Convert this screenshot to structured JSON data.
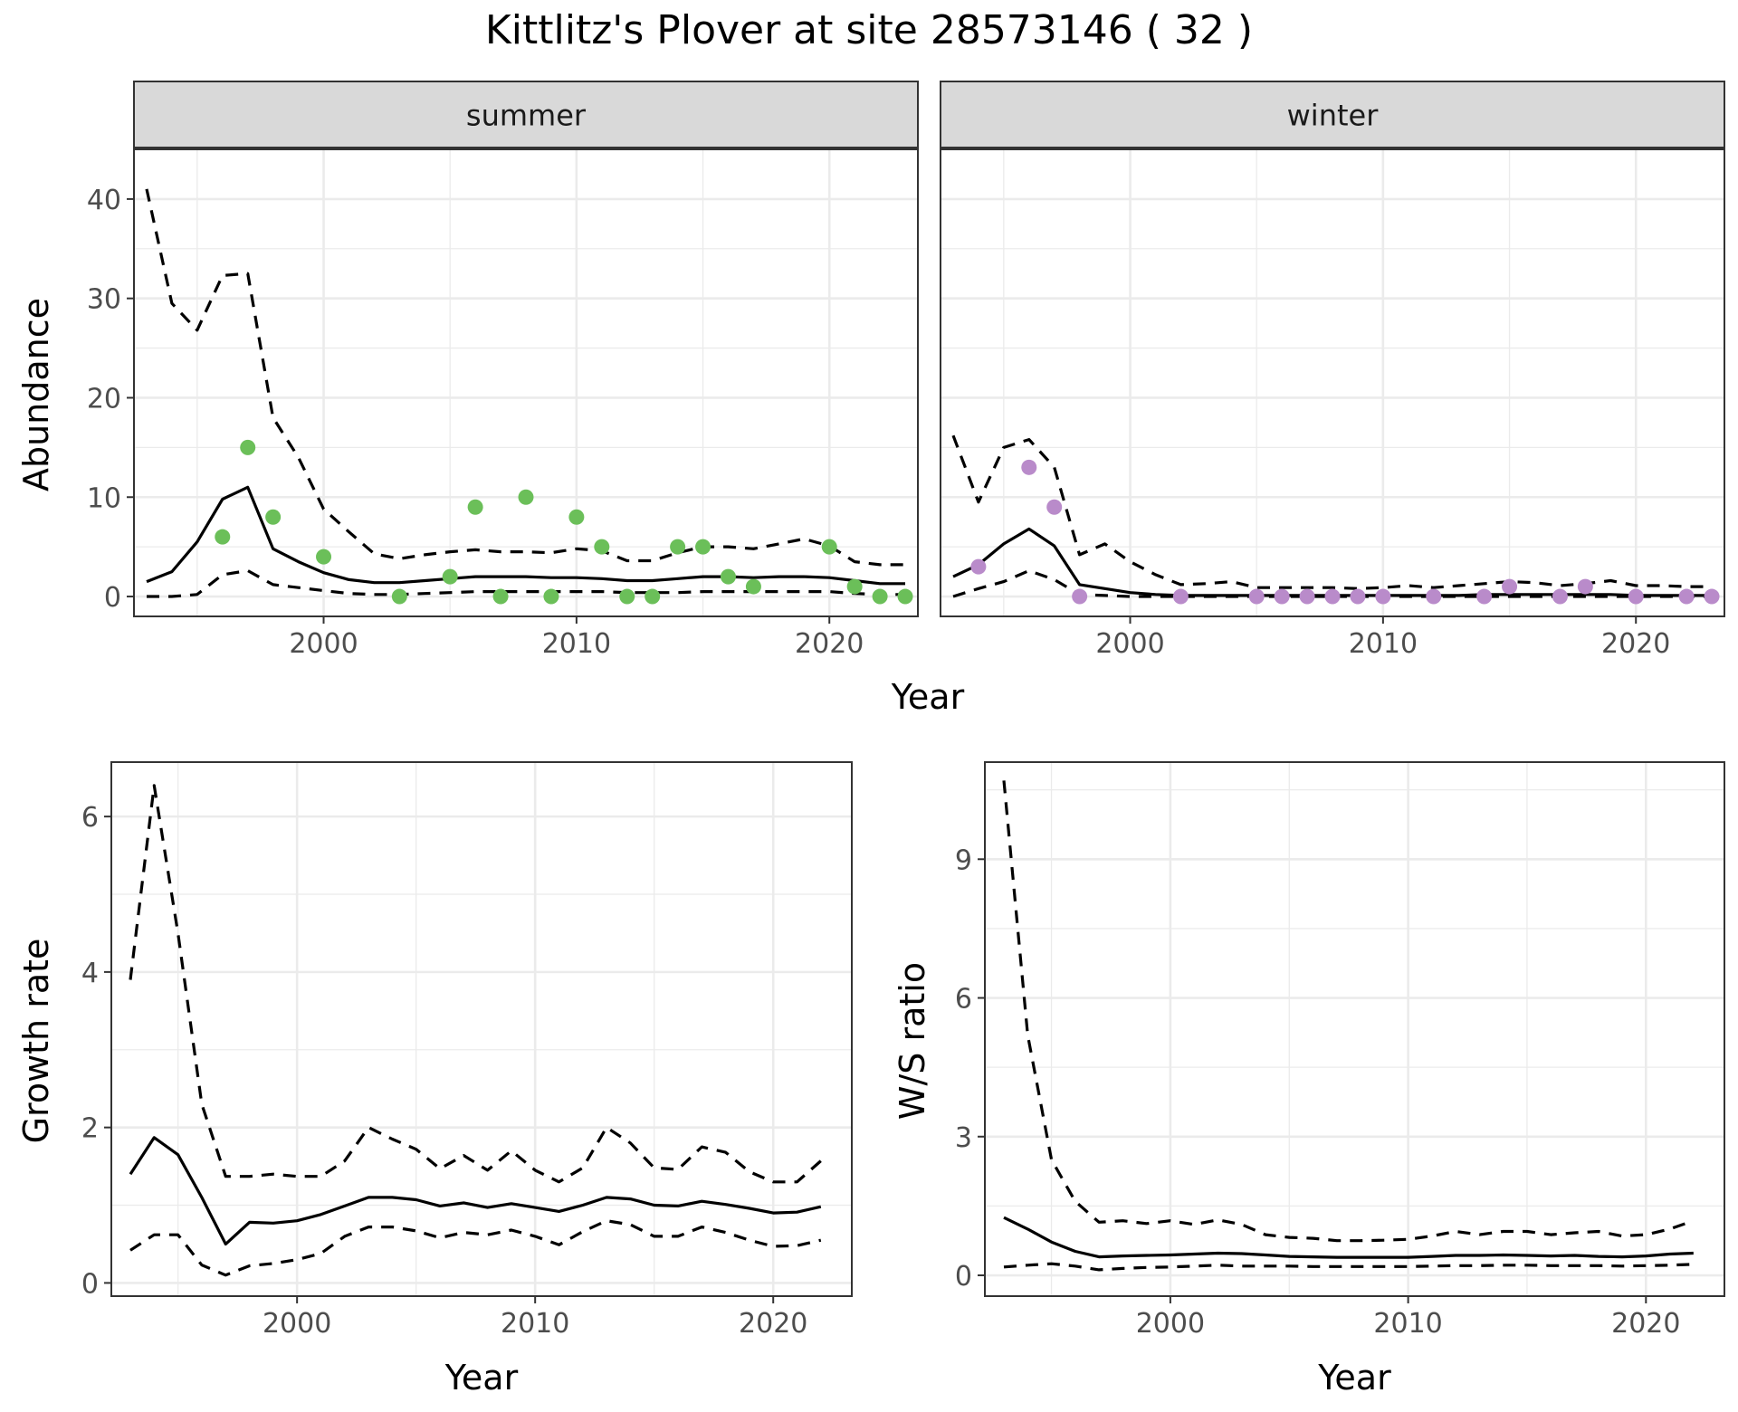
{
  "title": "Kittlitz's Plover at site 28573146 ( 32 )",
  "colors": {
    "summer_points": "#6BBF59",
    "winter_points": "#B98BCA",
    "line": "#000000",
    "strip_fill": "#D9D9D9",
    "grid": "#EBEBEB"
  },
  "chart_data": [
    {
      "type": "line",
      "panel": "summer",
      "strip_label": "summer",
      "xlabel": "Year",
      "ylabel": "Abundance",
      "xlim": [
        1992.5,
        2023.5
      ],
      "ylim": [
        -2,
        45
      ],
      "x_ticks": [
        2000,
        2010,
        2020
      ],
      "y_ticks": [
        0,
        10,
        20,
        30,
        40
      ],
      "grid": true,
      "series": [
        {
          "role": "mean",
          "style": "solid",
          "x": [
            1993,
            1994,
            1995,
            1996,
            1997,
            1998,
            1999,
            2000,
            2001,
            2002,
            2003,
            2004,
            2005,
            2006,
            2007,
            2008,
            2009,
            2010,
            2011,
            2012,
            2013,
            2014,
            2015,
            2016,
            2017,
            2018,
            2019,
            2020,
            2021,
            2022,
            2023
          ],
          "y": [
            1.5,
            2.5,
            5.5,
            9.8,
            11,
            4.8,
            3.5,
            2.4,
            1.7,
            1.4,
            1.4,
            1.6,
            1.8,
            2,
            2,
            2,
            1.9,
            1.9,
            1.8,
            1.6,
            1.6,
            1.8,
            2,
            2,
            1.9,
            2,
            2,
            1.9,
            1.6,
            1.3,
            1.3
          ]
        },
        {
          "role": "upper",
          "style": "dashed",
          "x": [
            1993,
            1994,
            1995,
            1996,
            1997,
            1998,
            1999,
            2000,
            2001,
            2002,
            2003,
            2004,
            2005,
            2006,
            2007,
            2008,
            2009,
            2010,
            2011,
            2012,
            2013,
            2014,
            2015,
            2016,
            2017,
            2018,
            2019,
            2020,
            2021,
            2022,
            2023
          ],
          "y": [
            41,
            29.5,
            26.8,
            32.3,
            32.5,
            18,
            14,
            8.8,
            6.5,
            4.3,
            3.8,
            4.2,
            4.5,
            4.7,
            4.5,
            4.5,
            4.4,
            4.8,
            4.6,
            3.6,
            3.6,
            4.4,
            5,
            5,
            4.8,
            5.3,
            5.8,
            5.1,
            3.5,
            3.2,
            3.2
          ]
        },
        {
          "role": "lower",
          "style": "dashed",
          "x": [
            1993,
            1994,
            1995,
            1996,
            1997,
            1998,
            1999,
            2000,
            2001,
            2002,
            2003,
            2004,
            2005,
            2006,
            2007,
            2008,
            2009,
            2010,
            2011,
            2012,
            2013,
            2014,
            2015,
            2016,
            2017,
            2018,
            2019,
            2020,
            2021,
            2022,
            2023
          ],
          "y": [
            0,
            0,
            0.2,
            2.2,
            2.6,
            1.2,
            0.9,
            0.6,
            0.3,
            0.2,
            0.2,
            0.3,
            0.4,
            0.5,
            0.5,
            0.5,
            0.5,
            0.5,
            0.5,
            0.4,
            0.4,
            0.4,
            0.5,
            0.5,
            0.5,
            0.5,
            0.5,
            0.5,
            0.3,
            0.2,
            0.2
          ]
        }
      ],
      "points": {
        "x": [
          1996,
          1997,
          1998,
          2000,
          2003,
          2005,
          2006,
          2007,
          2008,
          2009,
          2010,
          2011,
          2012,
          2013,
          2014,
          2015,
          2016,
          2017,
          2020,
          2021,
          2022,
          2023
        ],
        "y": [
          6,
          15,
          8,
          4,
          0,
          2,
          9,
          0,
          10,
          0,
          8,
          5,
          0,
          0,
          5,
          5,
          2,
          1,
          5,
          1,
          0,
          0
        ]
      }
    },
    {
      "type": "line",
      "panel": "winter",
      "strip_label": "winter",
      "xlabel": "Year",
      "ylabel": "",
      "xlim": [
        1992.5,
        2023.5
      ],
      "ylim": [
        -2,
        45
      ],
      "x_ticks": [
        2000,
        2010,
        2020
      ],
      "y_ticks": [
        0,
        10,
        20,
        30,
        40
      ],
      "grid": true,
      "series": [
        {
          "role": "mean",
          "style": "solid",
          "x": [
            1993,
            1994,
            1995,
            1996,
            1997,
            1998,
            1999,
            2000,
            2001,
            2002,
            2003,
            2004,
            2005,
            2006,
            2007,
            2008,
            2009,
            2010,
            2011,
            2012,
            2013,
            2014,
            2015,
            2016,
            2017,
            2018,
            2019,
            2020,
            2021,
            2022,
            2023
          ],
          "y": [
            2,
            3.2,
            5.3,
            6.8,
            5.1,
            1.2,
            0.8,
            0.4,
            0.2,
            0.1,
            0.1,
            0.1,
            0.1,
            0.1,
            0.1,
            0.1,
            0.1,
            0.1,
            0.1,
            0.1,
            0.1,
            0.2,
            0.2,
            0.2,
            0.2,
            0.2,
            0.2,
            0.1,
            0.1,
            0.1,
            0.1
          ]
        },
        {
          "role": "upper",
          "style": "dashed",
          "x": [
            1993,
            1994,
            1995,
            1996,
            1997,
            1998,
            1999,
            2000,
            2001,
            2002,
            2003,
            2004,
            2005,
            2006,
            2007,
            2008,
            2009,
            2010,
            2011,
            2012,
            2013,
            2014,
            2015,
            2016,
            2017,
            2018,
            2019,
            2020,
            2021,
            2022,
            2023
          ],
          "y": [
            16.2,
            9.5,
            15,
            15.8,
            13,
            4.2,
            5.3,
            3.5,
            2.2,
            1.2,
            1.3,
            1.5,
            0.9,
            0.9,
            0.9,
            0.9,
            0.8,
            0.9,
            1.1,
            0.9,
            1.1,
            1.3,
            1.5,
            1.4,
            1.1,
            1.3,
            1.6,
            1.1,
            1.1,
            1,
            1
          ]
        },
        {
          "role": "lower",
          "style": "dashed",
          "x": [
            1993,
            1994,
            1995,
            1996,
            1997,
            1998,
            1999,
            2000,
            2001,
            2002,
            2003,
            2004,
            2005,
            2006,
            2007,
            2008,
            2009,
            2010,
            2011,
            2012,
            2013,
            2014,
            2015,
            2016,
            2017,
            2018,
            2019,
            2020,
            2021,
            2022,
            2023
          ],
          "y": [
            0,
            0.8,
            1.5,
            2.6,
            1.7,
            0.2,
            0.1,
            0,
            0,
            0,
            0,
            0,
            0,
            0,
            0,
            0,
            0,
            0,
            0,
            0,
            0,
            0,
            0,
            0,
            0,
            0,
            0,
            0,
            0,
            0,
            0
          ]
        }
      ],
      "points": {
        "x": [
          1994,
          1996,
          1997,
          1998,
          2002,
          2005,
          2006,
          2007,
          2008,
          2009,
          2010,
          2012,
          2014,
          2015,
          2017,
          2018,
          2020,
          2022,
          2023
        ],
        "y": [
          3,
          13,
          9,
          0,
          0,
          0,
          0,
          0,
          0,
          0,
          0,
          0,
          0,
          1,
          0,
          1,
          0,
          0,
          0
        ]
      }
    },
    {
      "type": "line",
      "panel": "growth",
      "xlabel": "Year",
      "ylabel": "Growth rate",
      "xlim": [
        1992.2,
        2023.3
      ],
      "ylim": [
        -0.17,
        6.7
      ],
      "x_ticks": [
        2000,
        2010,
        2020
      ],
      "y_ticks": [
        0,
        2,
        4,
        6
      ],
      "grid": true,
      "series": [
        {
          "role": "mean",
          "style": "solid",
          "x": [
            1993,
            1994,
            1995,
            1996,
            1997,
            1998,
            1999,
            2000,
            2001,
            2002,
            2003,
            2004,
            2005,
            2006,
            2007,
            2008,
            2009,
            2010,
            2011,
            2012,
            2013,
            2014,
            2015,
            2016,
            2017,
            2018,
            2019,
            2020,
            2021,
            2022
          ],
          "y": [
            1.4,
            1.87,
            1.65,
            1.1,
            0.5,
            0.78,
            0.77,
            0.8,
            0.88,
            0.99,
            1.1,
            1.1,
            1.07,
            0.99,
            1.03,
            0.97,
            1.02,
            0.97,
            0.92,
            1.0,
            1.1,
            1.08,
            1.0,
            0.99,
            1.05,
            1.01,
            0.96,
            0.9,
            0.91,
            0.98
          ]
        },
        {
          "role": "upper",
          "style": "dashed",
          "x": [
            1993,
            1994,
            1995,
            1996,
            1997,
            1998,
            1999,
            2000,
            2001,
            2002,
            2003,
            2004,
            2005,
            2006,
            2007,
            2008,
            2009,
            2010,
            2011,
            2012,
            2013,
            2014,
            2015,
            2016,
            2017,
            2018,
            2019,
            2020,
            2021,
            2022
          ],
          "y": [
            3.9,
            6.4,
            4.5,
            2.3,
            1.37,
            1.37,
            1.4,
            1.37,
            1.37,
            1.57,
            2.0,
            1.85,
            1.72,
            1.47,
            1.64,
            1.45,
            1.7,
            1.45,
            1.3,
            1.48,
            2.0,
            1.8,
            1.48,
            1.46,
            1.75,
            1.68,
            1.43,
            1.3,
            1.3,
            1.57
          ]
        },
        {
          "role": "lower",
          "style": "dashed",
          "x": [
            1993,
            1994,
            1995,
            1996,
            1997,
            1998,
            1999,
            2000,
            2001,
            2002,
            2003,
            2004,
            2005,
            2006,
            2007,
            2008,
            2009,
            2010,
            2011,
            2012,
            2013,
            2014,
            2015,
            2016,
            2017,
            2018,
            2019,
            2020,
            2021,
            2022
          ],
          "y": [
            0.42,
            0.62,
            0.62,
            0.23,
            0.1,
            0.22,
            0.25,
            0.3,
            0.38,
            0.6,
            0.72,
            0.72,
            0.67,
            0.58,
            0.65,
            0.62,
            0.68,
            0.6,
            0.49,
            0.66,
            0.8,
            0.75,
            0.6,
            0.6,
            0.72,
            0.65,
            0.55,
            0.47,
            0.48,
            0.55
          ]
        }
      ]
    },
    {
      "type": "line",
      "panel": "ws_ratio",
      "xlabel": "Year",
      "ylabel": "W/S ratio",
      "xlim": [
        1992.2,
        2023.3
      ],
      "ylim": [
        -0.45,
        11.1
      ],
      "x_ticks": [
        2000,
        2010,
        2020
      ],
      "y_ticks": [
        0,
        3,
        6,
        9
      ],
      "grid": true,
      "series": [
        {
          "role": "mean",
          "style": "solid",
          "x": [
            1993,
            1994,
            1995,
            1996,
            1997,
            1998,
            1999,
            2000,
            2001,
            2002,
            2003,
            2004,
            2005,
            2006,
            2007,
            2008,
            2009,
            2010,
            2011,
            2012,
            2013,
            2014,
            2015,
            2016,
            2017,
            2018,
            2019,
            2020,
            2021,
            2022
          ],
          "y": [
            1.25,
            1.0,
            0.72,
            0.52,
            0.4,
            0.42,
            0.43,
            0.44,
            0.46,
            0.48,
            0.47,
            0.44,
            0.41,
            0.4,
            0.39,
            0.39,
            0.39,
            0.39,
            0.41,
            0.43,
            0.43,
            0.44,
            0.43,
            0.42,
            0.43,
            0.41,
            0.4,
            0.42,
            0.46,
            0.48
          ]
        },
        {
          "role": "upper",
          "style": "dashed",
          "x": [
            1993,
            1994,
            1995,
            1996,
            1997,
            1998,
            1999,
            2000,
            2001,
            2002,
            2003,
            2004,
            2005,
            2006,
            2007,
            2008,
            2009,
            2010,
            2011,
            2012,
            2013,
            2014,
            2015,
            2016,
            2017,
            2018,
            2019,
            2020,
            2021,
            2022
          ],
          "y": [
            10.7,
            5.2,
            2.5,
            1.6,
            1.15,
            1.18,
            1.12,
            1.18,
            1.1,
            1.2,
            1.1,
            0.88,
            0.82,
            0.8,
            0.75,
            0.75,
            0.76,
            0.78,
            0.85,
            0.95,
            0.88,
            0.95,
            0.95,
            0.88,
            0.92,
            0.95,
            0.85,
            0.88,
            1.0,
            1.18
          ]
        },
        {
          "role": "lower",
          "style": "dashed",
          "x": [
            1993,
            1994,
            1995,
            1996,
            1997,
            1998,
            1999,
            2000,
            2001,
            2002,
            2003,
            2004,
            2005,
            2006,
            2007,
            2008,
            2009,
            2010,
            2011,
            2012,
            2013,
            2014,
            2015,
            2016,
            2017,
            2018,
            2019,
            2020,
            2021,
            2022
          ],
          "y": [
            0.18,
            0.22,
            0.25,
            0.2,
            0.12,
            0.15,
            0.17,
            0.18,
            0.2,
            0.22,
            0.2,
            0.2,
            0.2,
            0.19,
            0.19,
            0.19,
            0.19,
            0.19,
            0.2,
            0.21,
            0.21,
            0.22,
            0.22,
            0.21,
            0.21,
            0.21,
            0.2,
            0.21,
            0.22,
            0.24
          ]
        }
      ]
    }
  ]
}
